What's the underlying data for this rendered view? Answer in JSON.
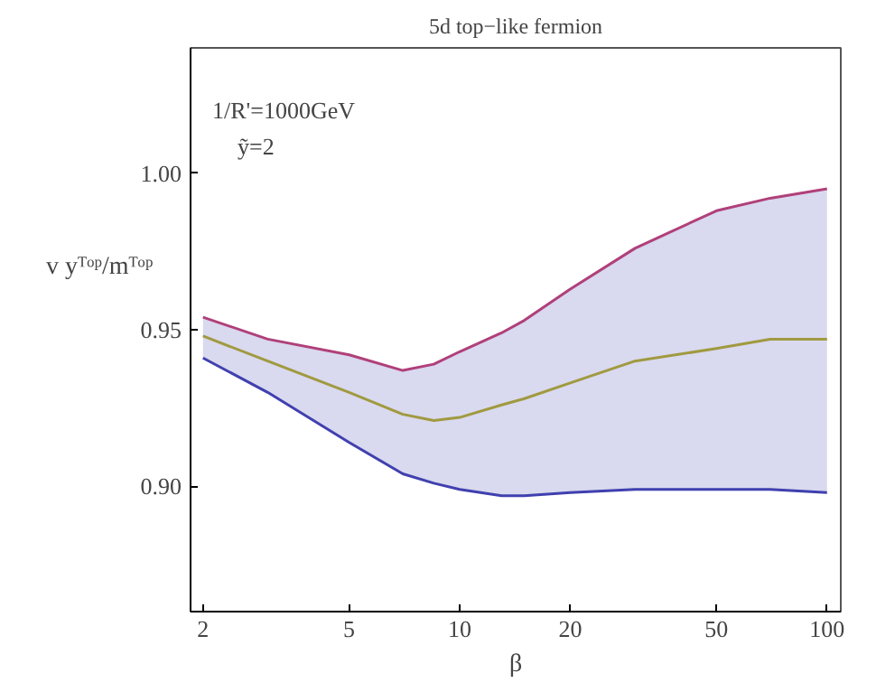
{
  "chart_data": {
    "type": "line",
    "title": "5d top−like fermion",
    "xlabel": "β",
    "ylabel": "v yᵀᵒᵖ/mᵀᵒᵖ",
    "annotations": [
      "1/R'=1000GeV",
      "ỹ=2"
    ],
    "x": [
      2,
      3,
      5,
      7,
      8.5,
      10,
      13,
      15,
      20,
      30,
      50,
      70,
      100
    ],
    "series": [
      {
        "color": "#b0407a",
        "values": [
          0.954,
          0.947,
          0.942,
          0.937,
          0.939,
          0.943,
          0.949,
          0.953,
          0.963,
          0.976,
          0.988,
          0.992,
          0.995
        ]
      },
      {
        "color": "#a09a40",
        "values": [
          0.948,
          0.94,
          0.93,
          0.923,
          0.921,
          0.922,
          0.926,
          0.928,
          0.933,
          0.94,
          0.944,
          0.947,
          0.947
        ]
      },
      {
        "color": "#4040b0",
        "values": [
          0.941,
          0.93,
          0.914,
          0.904,
          0.901,
          0.899,
          0.897,
          0.897,
          0.898,
          0.899,
          0.899,
          0.899,
          0.898
        ],
        "lower": [
          0.941,
          0.93,
          0.914,
          0.904,
          0.901,
          0.899,
          0.897,
          0.897,
          0.898,
          0.899,
          0.899,
          0.899,
          0.898
        ],
        "upper": [
          0.954,
          0.947,
          0.942,
          0.937,
          0.939,
          0.943,
          0.949,
          0.953,
          0.963,
          0.976,
          0.988,
          0.992,
          0.995
        ]
      }
    ],
    "log": "x",
    "xlim": [
      1.85,
      109
    ],
    "ylim": [
      0.86,
      1.04
    ],
    "xticks": [
      2,
      5,
      10,
      20,
      50,
      100
    ],
    "yticks": [
      {
        "value": 0.9,
        "label": "0.90"
      },
      {
        "value": 0.95,
        "label": "0.95"
      },
      {
        "value": 1.0,
        "label": "1.00"
      }
    ],
    "grid": false,
    "marker": "none",
    "line_style": "solid"
  }
}
